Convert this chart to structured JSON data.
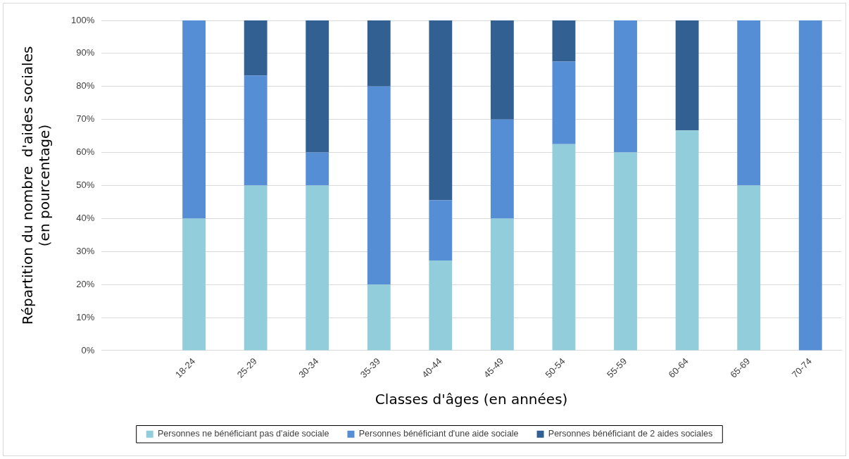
{
  "chart_data": {
    "type": "bar",
    "stacked": true,
    "xlabel": "Classes d'âges (en années)",
    "ylabel": "Répartition du nombre  d'aides sociales\n(en pourcentage)",
    "categories": [
      null,
      "18-24",
      "25-29",
      "30-34",
      "35-39",
      "40-44",
      "45-49",
      "50-54",
      "55-59",
      "60-64",
      "65-69",
      "70-74"
    ],
    "series": [
      {
        "name": "Personnes ne bénéficiant pas d'aide sociale",
        "color": "#92cddc",
        "values": [
          null,
          40,
          50,
          50,
          20,
          27.3,
          40,
          62.5,
          60,
          66.7,
          50,
          0
        ]
      },
      {
        "name": "Personnes bénéficiant d'une aide sociale",
        "color": "#558ed5",
        "values": [
          null,
          60,
          33.3,
          10,
          60,
          18.2,
          30,
          25,
          40,
          0,
          50,
          100
        ]
      },
      {
        "name": "Personnes bénéficiant de 2 aides sociales",
        "color": "#336092",
        "values": [
          null,
          0,
          16.7,
          40,
          20,
          54.5,
          30,
          12.5,
          0,
          33.3,
          0,
          0
        ]
      }
    ],
    "ylim": [
      0,
      100
    ],
    "yticks": [
      {
        "value": 0,
        "label": "0%"
      },
      {
        "value": 10,
        "label": "10%"
      },
      {
        "value": 20,
        "label": "20%"
      },
      {
        "value": 30,
        "label": "30%"
      },
      {
        "value": 40,
        "label": "40%"
      },
      {
        "value": 50,
        "label": "50%"
      },
      {
        "value": 60,
        "label": "60%"
      },
      {
        "value": 70,
        "label": "70%"
      },
      {
        "value": 80,
        "label": "80%"
      },
      {
        "value": 90,
        "label": "90%"
      },
      {
        "value": 100,
        "label": "100%"
      }
    ],
    "grid": "y",
    "legend": "bottom"
  }
}
